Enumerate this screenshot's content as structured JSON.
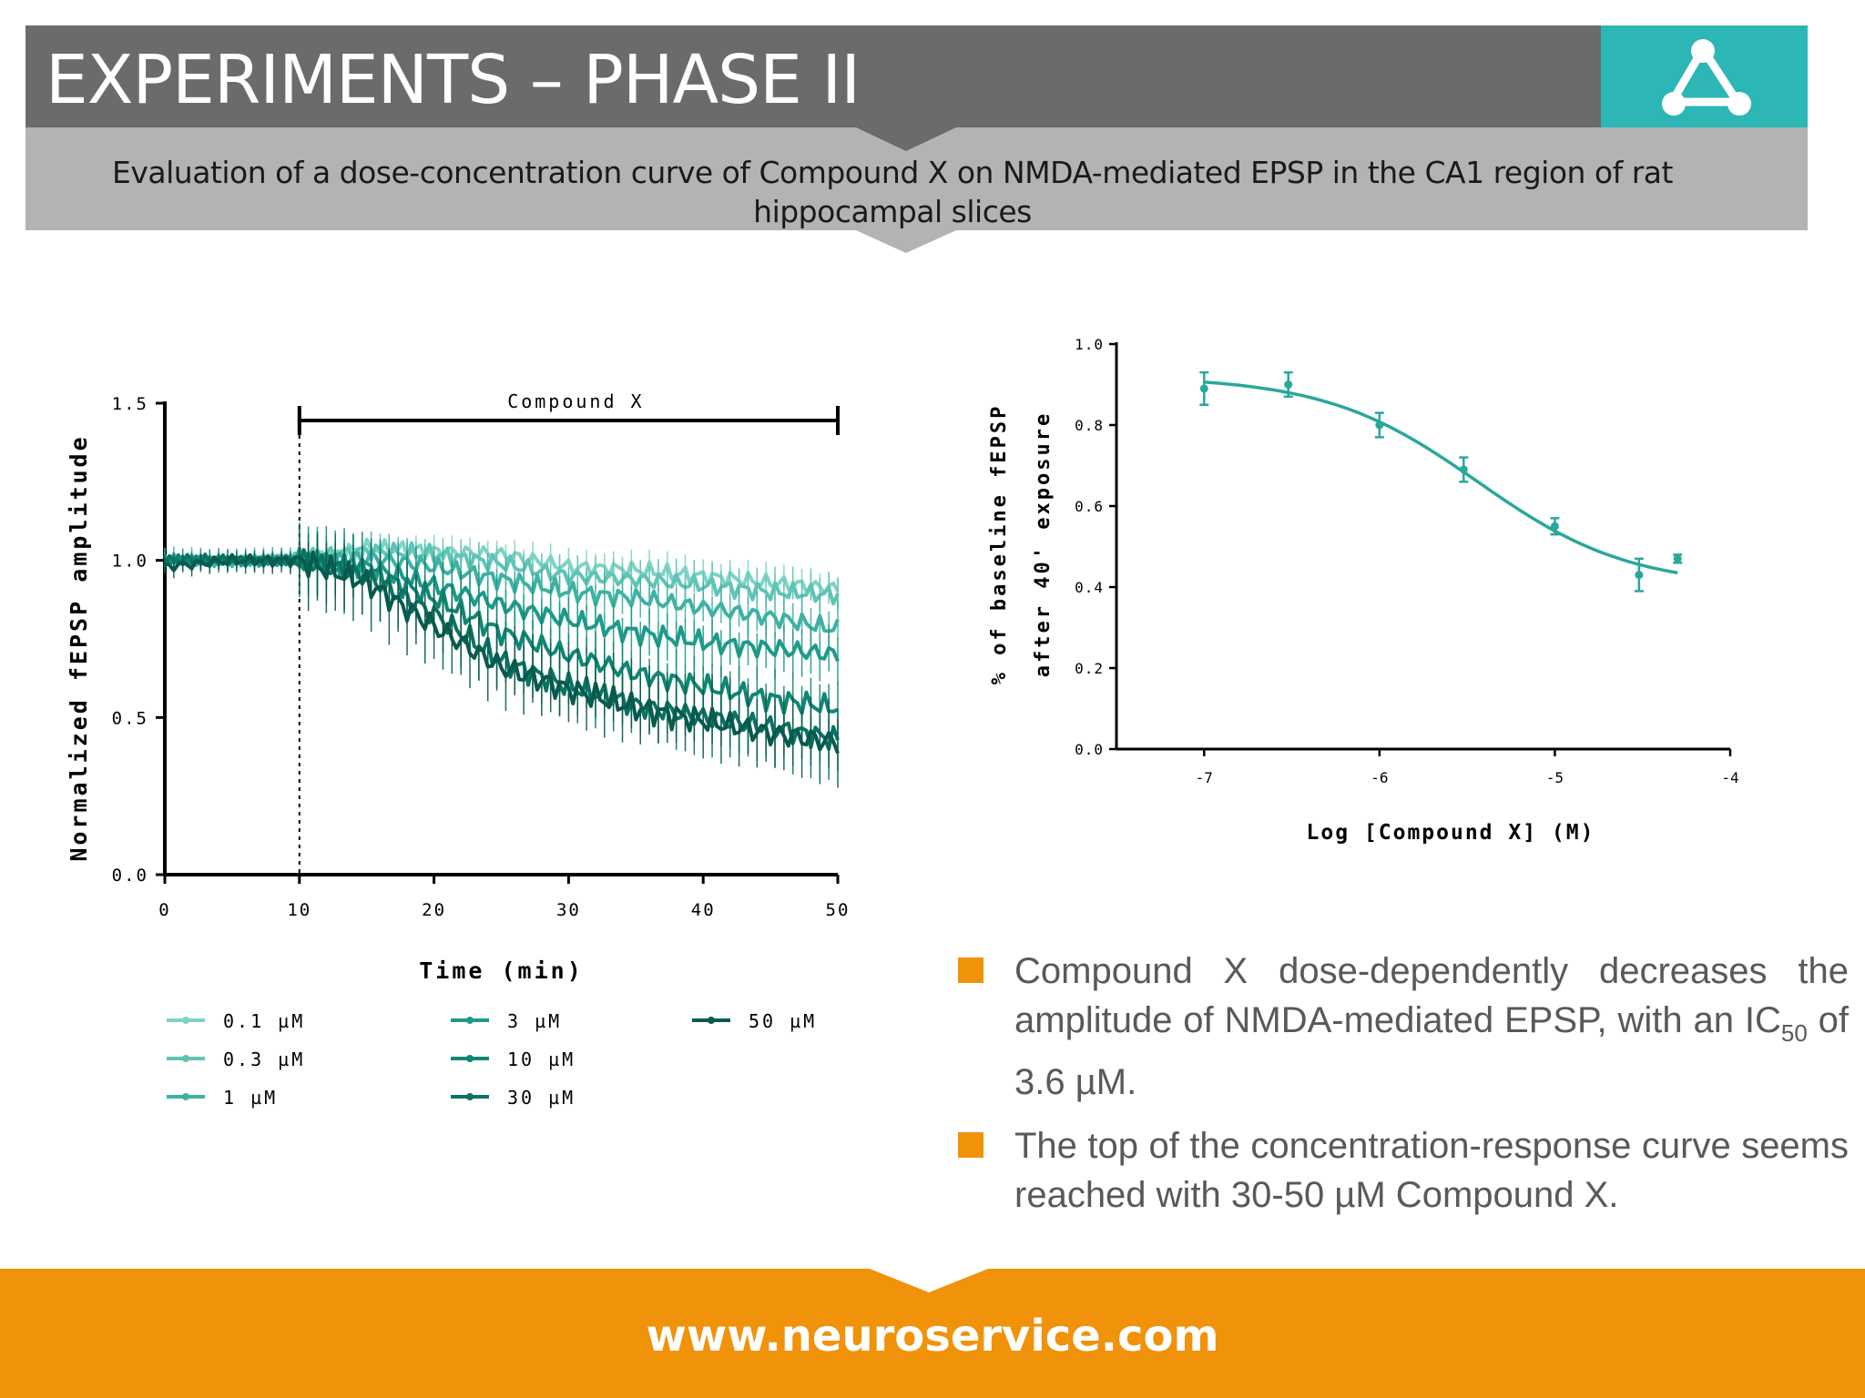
{
  "header": {
    "title": "EXPERIMENTS – PHASE II",
    "subtitle": "Evaluation of a dose-concentration curve of Compound X on NMDA-mediated EPSP in the CA1 region of rat hippocampal slices",
    "logo_icon": "triangle-molecule-icon"
  },
  "colors": {
    "header_bg": "#6b6b6b",
    "subtitle_bg": "#b3b3b3",
    "logo_bg": "#2cb6b5",
    "accent_orange": "#f0920a",
    "curve_teal": "#2aa79b"
  },
  "bullets": [
    {
      "text": "Compound X dose-dependently decreases the amplitude of NMDA-mediated EPSP, with an IC",
      "sub": "50",
      "tail": " of 3.6 µM."
    },
    {
      "text": "The top of the concentration-response curve seems reached with 30-50 µM Compound X."
    }
  ],
  "footer": {
    "url": "www.neuroservice.com"
  },
  "chart_data": [
    {
      "type": "line",
      "xlabel": "Time (min)",
      "ylabel": "Normalized fEPSP amplitude",
      "xlim": [
        0,
        50
      ],
      "ylim": [
        0,
        1.5
      ],
      "xticks": [
        "0",
        "10",
        "20",
        "30",
        "40",
        "50"
      ],
      "yticks": [
        "0.0",
        "0.5",
        "1.0",
        "1.5"
      ],
      "annotation": {
        "label": "Compound X",
        "start": 10,
        "end": 50
      },
      "x": [
        0,
        5,
        10,
        15,
        20,
        25,
        30,
        35,
        40,
        45,
        50
      ],
      "series": [
        {
          "name": "0.1 µM",
          "color": "#7fd3c6",
          "values": [
            1.0,
            1.0,
            1.0,
            1.04,
            1.03,
            1.02,
            0.98,
            0.97,
            0.95,
            0.93,
            0.91
          ]
        },
        {
          "name": "0.3 µM",
          "color": "#5fc4b5",
          "values": [
            1.0,
            1.0,
            1.01,
            1.03,
            1.02,
            0.99,
            0.95,
            0.94,
            0.92,
            0.9,
            0.89
          ]
        },
        {
          "name": "1 µM",
          "color": "#3eb2a2",
          "values": [
            1.0,
            1.0,
            1.0,
            1.01,
            0.98,
            0.94,
            0.9,
            0.88,
            0.85,
            0.82,
            0.78
          ]
        },
        {
          "name": "3 µM",
          "color": "#1e9a89",
          "values": [
            1.0,
            1.0,
            1.0,
            0.98,
            0.92,
            0.86,
            0.81,
            0.77,
            0.74,
            0.72,
            0.7
          ]
        },
        {
          "name": "10 µM",
          "color": "#108774",
          "values": [
            1.0,
            1.0,
            1.0,
            0.97,
            0.88,
            0.77,
            0.7,
            0.64,
            0.6,
            0.56,
            0.53
          ]
        },
        {
          "name": "30 µM",
          "color": "#0a7363",
          "values": [
            1.0,
            1.0,
            1.0,
            0.95,
            0.83,
            0.68,
            0.6,
            0.54,
            0.5,
            0.47,
            0.43
          ]
        },
        {
          "name": "50 µM",
          "color": "#075a4d",
          "values": [
            0.98,
            1.0,
            1.0,
            0.93,
            0.79,
            0.66,
            0.59,
            0.53,
            0.49,
            0.45,
            0.42
          ]
        }
      ],
      "legend": "bottom"
    },
    {
      "type": "scatter",
      "xlabel": "Log [Compound X] (M)",
      "ylabel": "% of baseline fEPSP after 40' exposure",
      "xlim": [
        -7.5,
        -4
      ],
      "ylim": [
        0,
        1.0
      ],
      "xticks": [
        "-7",
        "-6",
        "-5",
        "-4"
      ],
      "yticks": [
        "0.0",
        "0.2",
        "0.4",
        "0.6",
        "0.8",
        "1.0"
      ],
      "x": [
        -7,
        -6.52,
        -6,
        -5.52,
        -5,
        -4.52,
        -4.3
      ],
      "values": [
        0.89,
        0.9,
        0.8,
        0.69,
        0.55,
        0.43,
        0.47
      ],
      "errors": [
        0.04,
        0.03,
        0.03,
        0.03,
        0.02,
        0.04,
        0.01
      ],
      "fit": {
        "top": 0.92,
        "bottom": 0.4,
        "log_ic50": -5.44,
        "hill": 1.0,
        "range": [
          -7,
          -4.3
        ]
      }
    }
  ]
}
